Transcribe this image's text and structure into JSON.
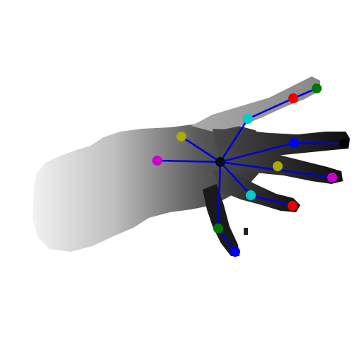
{
  "figure": {
    "kind": "hand-pose-depth-map",
    "background_color": "#ffffff",
    "bone_color": "#0000dd",
    "joint_colors": [
      "#000000",
      "#aaaa00",
      "#cc00cc",
      "#00cccc",
      "#0000ff",
      "#ee0000",
      "#007700"
    ],
    "joint_count": 14,
    "bone_count": 12
  }
}
